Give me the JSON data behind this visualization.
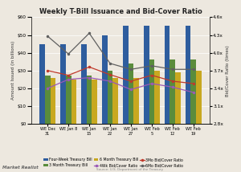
{
  "title": "Weekly T-Bill Issuance and Bid-Cover Ratio",
  "x_labels": [
    "WE Dec\n31",
    "WE Jan 8",
    "WE Jan\n15",
    "WE Jan\n22",
    "WE Jan\n27",
    "WE Feb\n5",
    "WE Feb\n12",
    "WE Feb\n19"
  ],
  "four_week": [
    45,
    45,
    45,
    50,
    55,
    55,
    55,
    55
  ],
  "three_month": [
    27,
    27,
    27,
    30,
    34,
    36,
    36,
    36
  ],
  "six_month": [
    26,
    25,
    25,
    26,
    26,
    30,
    29,
    30
  ],
  "bid_4wk": [
    3.4,
    3.55,
    3.58,
    3.52,
    3.38,
    3.48,
    3.42,
    3.33
  ],
  "bid_3mo": [
    3.7,
    3.62,
    3.76,
    3.63,
    3.52,
    3.62,
    3.52,
    3.48
  ],
  "bid_6mo": [
    4.28,
    3.98,
    4.33,
    3.82,
    3.72,
    3.78,
    3.72,
    3.72
  ],
  "bar_blue": "#2E5D9E",
  "bar_green": "#5A8C3C",
  "bar_yellow": "#C8A820",
  "line_purple": "#9B59B6",
  "line_red": "#C0392B",
  "line_gray": "#606060",
  "left_ylim": [
    0,
    60
  ],
  "right_ylim": [
    2.8,
    4.6
  ],
  "left_yticks": [
    0,
    10,
    20,
    30,
    40,
    50,
    60
  ],
  "right_yticks": [
    2.8,
    3.1,
    3.4,
    3.7,
    4.0,
    4.3,
    4.6
  ],
  "ylabel_left": "Amount Issued (in billions)",
  "ylabel_right": "Bid/Cover Ratio (times)",
  "source": "Source: U.S. Department of the Treasury",
  "watermark": "Market Realist",
  "legend_labels": [
    "Four-Week Treasury Bill",
    "3 Month Treasury Bill",
    "6 Month Treasury Bill",
    "4Wk Bid/Cover Ratio",
    "3Mo Bid/Cover Ratio",
    "6Mo Bid/Cover Ratio"
  ],
  "bg_color": "#ede8df"
}
